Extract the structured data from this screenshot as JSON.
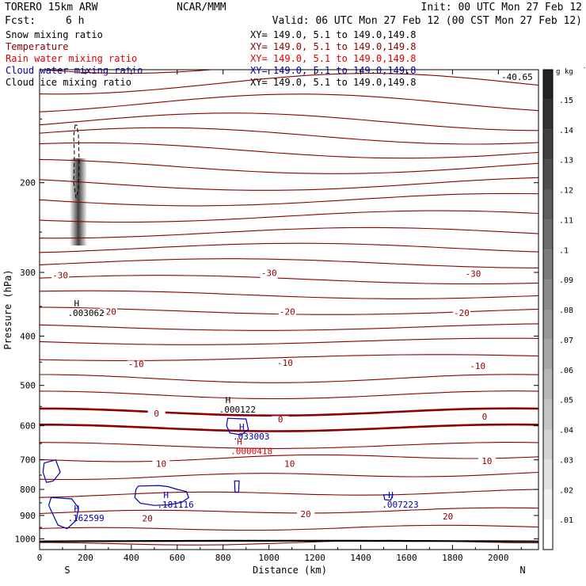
{
  "header": {
    "model": "TORERO  15km ARW",
    "center": "NCAR/MMM",
    "init": "Init: 00 UTC Mon 27 Feb 12",
    "fcst_label": "Fcst:",
    "fcst_value": "6 h",
    "valid": "Valid: 06 UTC Mon 27 Feb 12 (00 CST Mon 27 Feb 12)"
  },
  "fields": [
    {
      "name": "Snow mixing ratio",
      "xy": "XY= 149.0,  5.1 to 149.0,149.8",
      "color": "#000000"
    },
    {
      "name": "Temperature",
      "xy": "XY= 149.0,  5.1 to 149.0,149.8",
      "color": "#8b0000"
    },
    {
      "name": "Rain water mixing ratio",
      "xy": "XY= 149.0,  5.1 to 149.0,149.8",
      "color": "#dd0000"
    },
    {
      "name": "Cloud water mixing ratio",
      "xy": "XY= 149.0,  5.1 to 149.0,149.8",
      "color": "#0000aa"
    },
    {
      "name": "Cloud ice mixing ratio",
      "xy": "XY= 149.0,  5.1 to 149.0,149.8",
      "color": "#000000"
    }
  ],
  "colors": {
    "temperature": "#8b0000",
    "rain": "#dd0000",
    "cloud_water": "#0000aa",
    "snow": "#000000",
    "terrain": "#000000"
  },
  "chart_data": {
    "type": "contour",
    "xlabel": "Distance (km)",
    "ylabel": "Pressure (hPa)",
    "xlim": [
      0,
      2175
    ],
    "ylim": [
      1050,
      120
    ],
    "y_scale": "log",
    "x_ticks": [
      0,
      200,
      400,
      600,
      800,
      1000,
      1200,
      1400,
      1600,
      1800,
      2000
    ],
    "y_ticks": [
      200,
      300,
      400,
      500,
      600,
      700,
      800,
      900,
      1000
    ],
    "x_end_labels": {
      "left": "S",
      "right": "N"
    },
    "colorbar": {
      "unit": "g kg",
      "unit_exp": "-1",
      "levels": [
        0.01,
        0.02,
        0.03,
        0.04,
        0.05,
        0.06,
        0.07,
        0.08,
        0.09,
        0.1,
        0.11,
        0.12,
        0.13,
        0.14,
        0.15
      ],
      "tick_labels": [
        ".01",
        ".02",
        ".03",
        ".04",
        ".05",
        ".06",
        ".07",
        ".08",
        ".09",
        ".1",
        ".11",
        ".12",
        ".13",
        ".14",
        ".15"
      ]
    },
    "temperature_contour_labels": [
      {
        "text": "-30",
        "x": 90,
        "p": 308
      },
      {
        "text": "-30",
        "x": 1000,
        "p": 305
      },
      {
        "text": "-30",
        "x": 1890,
        "p": 306
      },
      {
        "text": "-20",
        "x": 300,
        "p": 363
      },
      {
        "text": "-20",
        "x": 1080,
        "p": 363
      },
      {
        "text": "-20",
        "x": 1840,
        "p": 365
      },
      {
        "text": "-10",
        "x": 420,
        "p": 460
      },
      {
        "text": "-10",
        "x": 1070,
        "p": 458
      },
      {
        "text": "-10",
        "x": 1910,
        "p": 464
      },
      {
        "text": "0",
        "x": 510,
        "p": 575
      },
      {
        "text": "0",
        "x": 1050,
        "p": 591
      },
      {
        "text": "0",
        "x": 1940,
        "p": 584
      },
      {
        "text": "10",
        "x": 530,
        "p": 722
      },
      {
        "text": "10",
        "x": 1090,
        "p": 722
      },
      {
        "text": "10",
        "x": 1950,
        "p": 713
      },
      {
        "text": "20",
        "x": 470,
        "p": 925
      },
      {
        "text": "20",
        "x": 1160,
        "p": 906
      },
      {
        "text": "20",
        "x": 1780,
        "p": 917
      }
    ],
    "maxima": [
      {
        "field": "snow",
        "label": "H",
        "value": ".003062",
        "x": 150,
        "p": 350
      },
      {
        "field": "snow",
        "label": "H",
        "value": ".000122",
        "x": 810,
        "p": 542
      },
      {
        "field": "cloud_water",
        "label": "H",
        "value": ".033003",
        "x": 870,
        "p": 612
      },
      {
        "field": "rain",
        "label": "H",
        "value": ".0000418",
        "x": 860,
        "p": 654
      },
      {
        "field": "cloud_water",
        "label": "H",
        "value": ".181116",
        "x": 540,
        "p": 832
      },
      {
        "field": "cloud_water",
        "label": "H",
        "value": ".007223",
        "x": 1520,
        "p": 832
      },
      {
        "field": "cloud_water",
        "label": "H",
        "value": ".162599",
        "x": 150,
        "p": 885
      }
    ],
    "label_fragment": "-40.65"
  }
}
